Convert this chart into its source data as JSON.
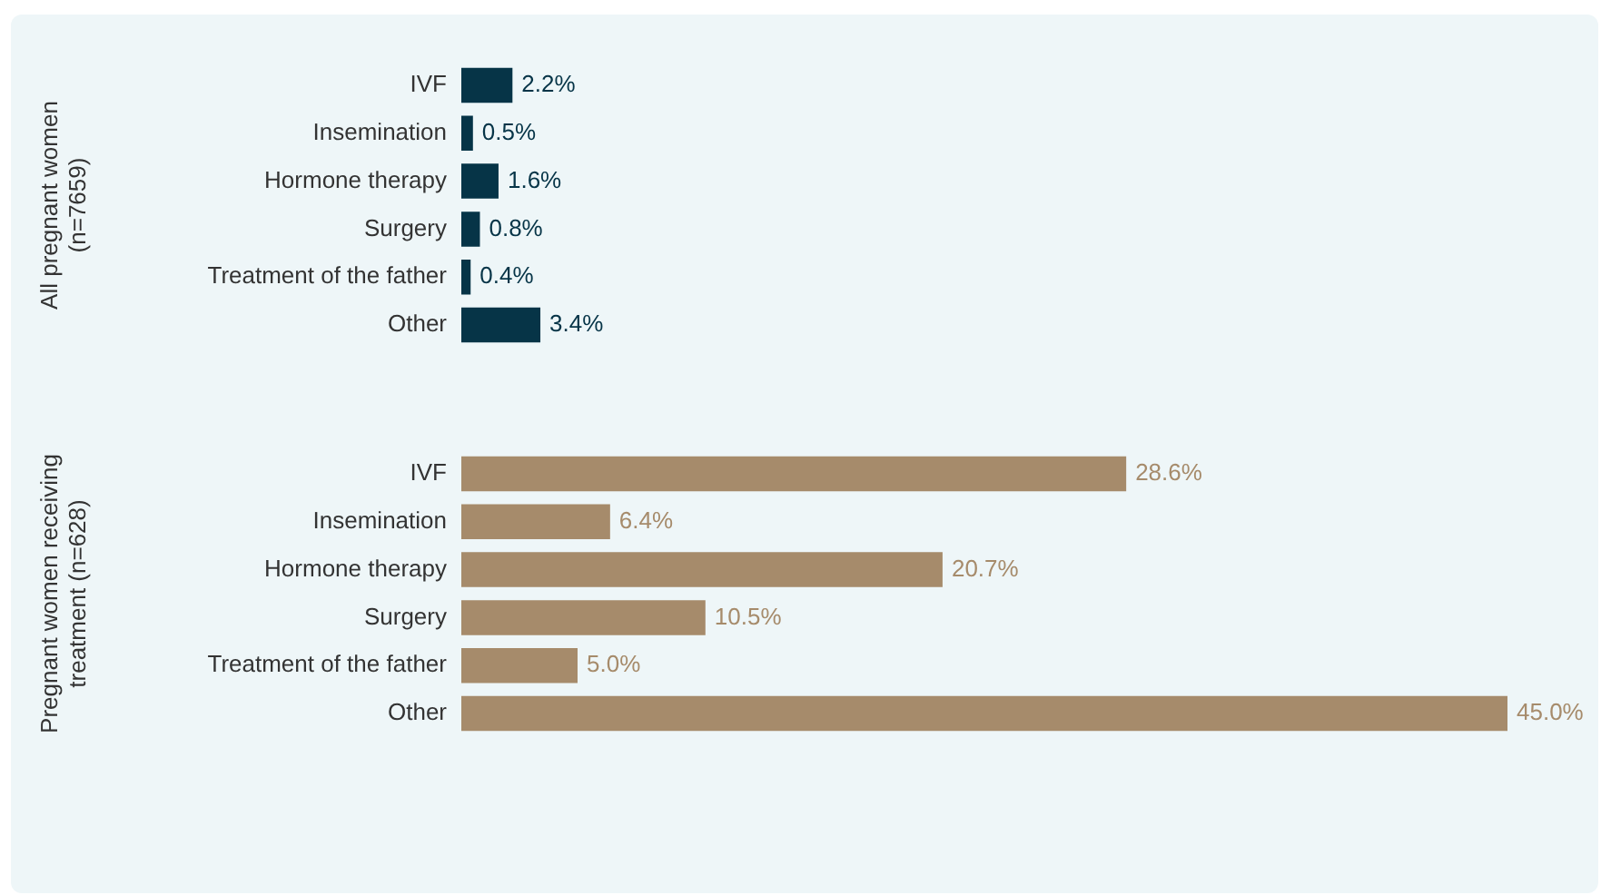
{
  "chart_data": [
    {
      "type": "bar",
      "orientation": "horizontal",
      "ylabel": "All pregnant women\n(n=7659)",
      "categories": [
        "IVF",
        "Insemination",
        "Hormone therapy",
        "Surgery",
        "Treatment of the father",
        "Other"
      ],
      "values": [
        2.2,
        0.5,
        1.6,
        0.8,
        0.4,
        3.4
      ],
      "color": "#063447",
      "value_labels": [
        "2.2%",
        "0.5%",
        "1.6%",
        "0.8%",
        "0.4%",
        "3.4%"
      ],
      "tick_labels": "y",
      "grid": false,
      "legend": false
    },
    {
      "type": "bar",
      "orientation": "horizontal",
      "ylabel": "Pregnant women receiving\ntreatment (n=628)",
      "categories": [
        "IVF",
        "Insemination",
        "Hormone therapy",
        "Surgery",
        "Treatment of the father",
        "Other"
      ],
      "values": [
        28.6,
        6.4,
        20.7,
        10.5,
        5.0,
        45.0
      ],
      "color": "#a68b6b",
      "value_labels": [
        "28.6%",
        "6.4%",
        "20.7%",
        "10.5%",
        "5.0%",
        "45.0%"
      ],
      "tick_labels": "y",
      "grid": false,
      "legend": false
    }
  ]
}
